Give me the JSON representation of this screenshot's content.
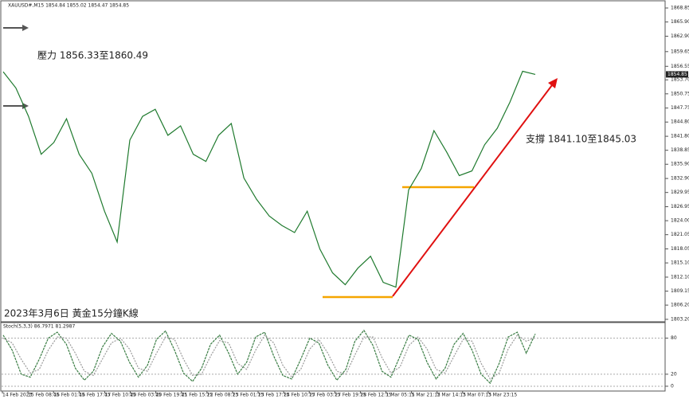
{
  "chart_data": [
    {
      "type": "line",
      "title": "XAUUSD#,M15 1854.84 1855.02 1854.47 1854.85",
      "color": "#1f7a2e",
      "values": [
        1855.4,
        1852.0,
        1846.0,
        1838.0,
        1840.5,
        1845.5,
        1838.0,
        1834.0,
        1826.0,
        1819.5,
        1841.0,
        1846.0,
        1847.5,
        1842.0,
        1844.0,
        1838.0,
        1836.5,
        1842.0,
        1844.5,
        1833.0,
        1828.5,
        1825.0,
        1823.0,
        1821.5,
        1826.0,
        1818.0,
        1813.0,
        1810.5,
        1814.0,
        1816.5,
        1811.0,
        1810.0,
        1830.5,
        1835.0,
        1843.0,
        1838.5,
        1833.5,
        1834.5,
        1840.0,
        1843.5,
        1849.0,
        1855.5,
        1854.85
      ],
      "last_price": {
        "value": 1854.85,
        "label": "1854.85"
      },
      "ylim": [
        1802.86,
        1870.03
      ],
      "yticks": [
        {
          "value": 1868.85,
          "label": "1868.85"
        },
        {
          "value": 1865.9,
          "label": "1865.90"
        },
        {
          "value": 1862.9,
          "label": "1862.90"
        },
        {
          "value": 1859.65,
          "label": "1859.65"
        },
        {
          "value": 1856.55,
          "label": "1856.55"
        },
        {
          "value": 1853.7,
          "label": "1853.70"
        },
        {
          "value": 1850.75,
          "label": "1850.75"
        },
        {
          "value": 1847.75,
          "label": "1847.75"
        },
        {
          "value": 1844.8,
          "label": "1844.80"
        },
        {
          "value": 1841.8,
          "label": "1841.80"
        },
        {
          "value": 1838.85,
          "label": "1838.85"
        },
        {
          "value": 1835.9,
          "label": "1835.90"
        },
        {
          "value": 1832.9,
          "label": "1832.90"
        },
        {
          "value": 1829.95,
          "label": "1829.95"
        },
        {
          "value": 1826.95,
          "label": "1826.95"
        },
        {
          "value": 1824.0,
          "label": "1824.00"
        },
        {
          "value": 1821.05,
          "label": "1821.05"
        },
        {
          "value": 1818.05,
          "label": "1818.05"
        },
        {
          "value": 1815.1,
          "label": "1815.10"
        },
        {
          "value": 1812.1,
          "label": "1812.10"
        },
        {
          "value": 1809.15,
          "label": "1809.15"
        },
        {
          "value": 1806.2,
          "label": "1806.20"
        },
        {
          "value": 1803.2,
          "label": "1803.20"
        }
      ],
      "annotations": [
        "壓力 1856.33至1860.49",
        "支撐 1841.10至1845.03",
        "2023年3月6日 黃金15分鐘K線"
      ]
    },
    {
      "type": "line",
      "title": "Stoch(5,3,3) 86.7971 81.2987",
      "series": [
        {
          "color": "#3a7d44",
          "values": [
            85,
            60,
            20,
            15,
            45,
            80,
            90,
            70,
            30,
            10,
            25,
            65,
            88,
            75,
            40,
            15,
            35,
            78,
            92,
            60,
            22,
            8,
            30,
            70,
            85,
            55,
            20,
            40,
            82,
            90,
            50,
            18,
            12,
            45,
            80,
            72,
            35,
            10,
            28,
            75,
            93,
            68,
            25,
            15,
            50,
            85,
            78,
            40,
            12,
            30,
            70,
            88,
            60,
            20,
            5,
            38,
            82,
            90,
            55,
            87
          ]
        },
        {
          "color": "#9a9a9a",
          "values": [
            80,
            72,
            45,
            22,
            28,
            60,
            82,
            80,
            55,
            25,
            18,
            45,
            72,
            80,
            62,
            30,
            25,
            55,
            82,
            78,
            45,
            18,
            20,
            50,
            76,
            72,
            38,
            28,
            60,
            85,
            72,
            35,
            15,
            28,
            62,
            78,
            55,
            25,
            20,
            52,
            82,
            82,
            48,
            22,
            32,
            68,
            82,
            62,
            28,
            22,
            50,
            78,
            75,
            38,
            12,
            22,
            62,
            85,
            75,
            81
          ]
        }
      ],
      "ylim": [
        -8,
        106
      ],
      "yticks": [
        80,
        20,
        0
      ],
      "x_labels": [
        "14 Feb 2023",
        "15 Feb 08:45",
        "16 Feb 01:45",
        "16 Feb 17:45",
        "17 Feb 10:45",
        "20 Feb 03:45",
        "20 Feb 19:45",
        "21 Feb 15:15",
        "22 Feb 08:15",
        "23 Feb 01:15",
        "23 Feb 17:15",
        "24 Feb 10:15",
        "27 Feb 03:15",
        "27 Feb 19:15",
        "28 Feb 12:15",
        "1 Mar 05:15",
        "1 Mar 21:15",
        "2 Mar 14:15",
        "3 Mar 07:15",
        "3 Mar 23:15"
      ]
    }
  ]
}
